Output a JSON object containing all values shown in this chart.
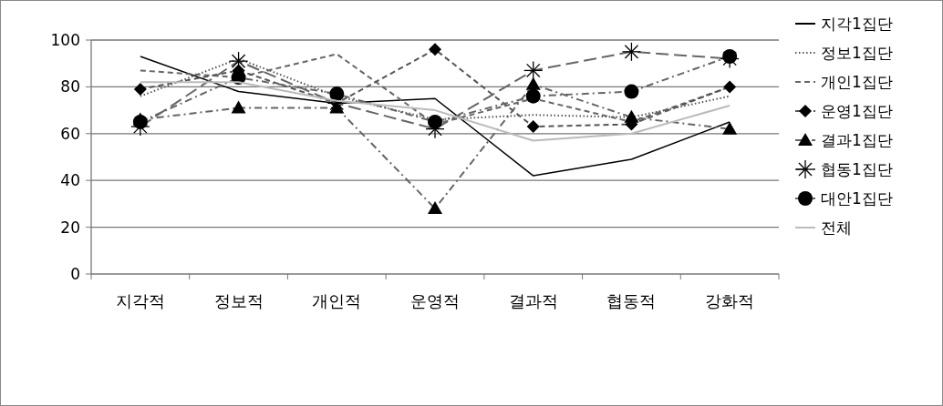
{
  "chart_data": {
    "type": "line",
    "categories": [
      "지각적",
      "정보적",
      "개인적",
      "운영적",
      "결과적",
      "협동적",
      "강화적"
    ],
    "ylim": [
      0,
      100
    ],
    "yticks": [
      0,
      20,
      40,
      60,
      80,
      100
    ],
    "grid": "y",
    "legend": "right",
    "series": [
      {
        "name": "지각1집단",
        "color": "#000000",
        "line_style": "solid",
        "marker": "none",
        "values": [
          93,
          78,
          73,
          75,
          42,
          49,
          65
        ]
      },
      {
        "name": "정보1집단",
        "color": "#555555",
        "line_style": "dotted",
        "marker": "none",
        "values": [
          76,
          92,
          76,
          66,
          68,
          67,
          76
        ]
      },
      {
        "name": "개인1집단",
        "color": "#666666",
        "line_style": "dashed",
        "marker": "none",
        "values": [
          87,
          84,
          94,
          64,
          75,
          65,
          80
        ]
      },
      {
        "name": "운영1집단",
        "color": "#555555",
        "line_style": "dashed",
        "marker": "diamond",
        "values": [
          79,
          87,
          73,
          96,
          63,
          64,
          80
        ]
      },
      {
        "name": "결과1집단",
        "color": "#666666",
        "line_style": "dashdot",
        "marker": "triangle",
        "values": [
          66,
          71,
          71,
          28,
          81,
          67,
          62
        ]
      },
      {
        "name": "협동1집단",
        "color": "#666666",
        "line_style": "longdash",
        "marker": "cross",
        "values": [
          63,
          91,
          73,
          62,
          87,
          95,
          92
        ]
      },
      {
        "name": "대안1집단",
        "color": "#666666",
        "line_style": "dashdot",
        "marker": "circle",
        "values": [
          65,
          84,
          77,
          65,
          76,
          78,
          93
        ]
      },
      {
        "name": "전체",
        "color": "#bbbbbb",
        "line_style": "solid",
        "marker": "none",
        "values": [
          82,
          82,
          74,
          70,
          57,
          60,
          72
        ]
      }
    ]
  }
}
